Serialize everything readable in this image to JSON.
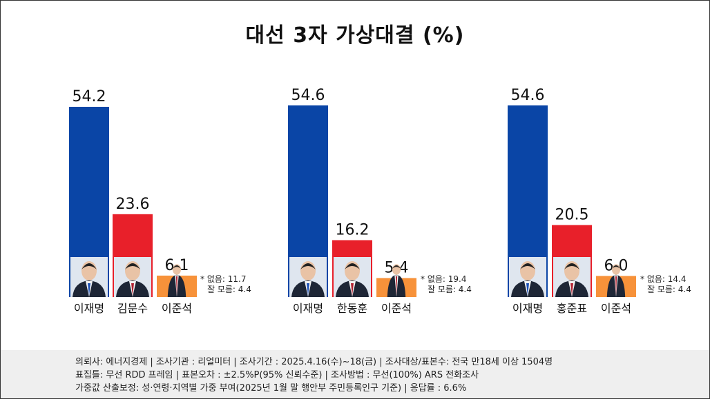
{
  "chart_data": {
    "type": "bar",
    "title": "대선  3자 가상대결 (%)",
    "ylim": [
      0,
      60
    ],
    "grid": false,
    "groups": [
      {
        "categories": [
          "이재명",
          "김문수",
          "이준석"
        ],
        "values": [
          54.2,
          23.6,
          6.1
        ],
        "note": [
          "* 없음: 11.7",
          "잘 모름: 4.4"
        ]
      },
      {
        "categories": [
          "이재명",
          "한동훈",
          "이준석"
        ],
        "values": [
          54.6,
          16.2,
          5.4
        ],
        "note": [
          "* 없음: 19.4",
          "잘 모름: 4.4"
        ]
      },
      {
        "categories": [
          "이재명",
          "홍준표",
          "이준석"
        ],
        "values": [
          54.6,
          20.5,
          6.0
        ],
        "note": [
          "* 없음: 14.4",
          "잘 모름: 4.4"
        ]
      }
    ],
    "colors": [
      "#0a45a6",
      "#e8202a",
      "#f7923a"
    ]
  },
  "footer": {
    "line1": "의뢰사: 에너지경제 | 조사기관 : 리얼미터  |  조사기간 : 2025.4.16(수)~18(금) | 조사대상/표본수: 전국 만18세 이상 1504명",
    "line2": "표집틀: 무선 RDD 프레임 | 표본오차 : ±2.5%P(95% 신뢰수준) | 조사방법 : 무선(100%) ARS 전화조사",
    "line3": "가중값 산출보정: 성·연령·지역별 가중 부여(2025년 1월 말 행안부 주민등록인구 기준) | 응답률 : 6.6%"
  }
}
